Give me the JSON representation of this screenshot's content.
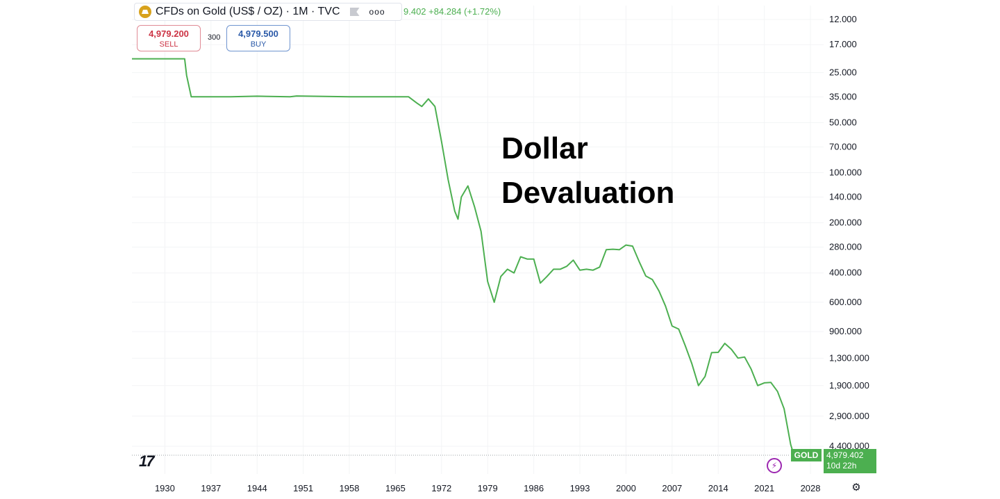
{
  "header": {
    "symbol_title": "CFDs on Gold (US$ / OZ) · 1M · TVC",
    "price_change": "9.402 +84.284 (+1.72%)",
    "more_icon": "ooo"
  },
  "trade": {
    "sell_price": "4,979.200",
    "sell_label": "SELL",
    "spread": "300",
    "buy_price": "4,979.500",
    "buy_label": "BUY"
  },
  "annotation_lines": [
    "Dollar",
    "Devaluation"
  ],
  "last_price": {
    "symbol": "GOLD",
    "price": "4,979.402",
    "countdown": "10d 22h"
  },
  "logo_text": "17",
  "colors": {
    "line": "#4caf50",
    "bolt": "#9c27b0",
    "gold_logo": "#d8a21c"
  },
  "icons": [
    "gold-logo-icon",
    "flag-icon",
    "more-icon",
    "lightning-icon",
    "settings-icon"
  ],
  "chart_data": {
    "type": "line",
    "scale": "log",
    "inverted": true,
    "series_name": "GOLD",
    "x_tick_labels": [
      "1930",
      "1937",
      "1944",
      "1951",
      "1958",
      "1965",
      "1972",
      "1979",
      "1986",
      "1993",
      "2000",
      "2007",
      "2014",
      "2021",
      "2028"
    ],
    "y_tick_labels": [
      "12.000",
      "17.000",
      "25.000",
      "35.000",
      "50.000",
      "70.000",
      "100.000",
      "140.000",
      "200.000",
      "280.000",
      "400.000",
      "600.000",
      "900.000",
      "1,300.000",
      "1,900.000",
      "2,900.000",
      "4,400.000"
    ],
    "y_tick_values": [
      12,
      17,
      25,
      35,
      50,
      70,
      100,
      140,
      200,
      280,
      400,
      600,
      900,
      1300,
      1900,
      2900,
      4400
    ],
    "x_range": [
      1925,
      2030
    ],
    "points": [
      [
        1925.0,
        20.67
      ],
      [
        1929.0,
        20.67
      ],
      [
        1931.0,
        20.67
      ],
      [
        1933.0,
        20.67
      ],
      [
        1933.3,
        26.0
      ],
      [
        1934.0,
        35.0
      ],
      [
        1940.0,
        35.0
      ],
      [
        1944.0,
        34.7
      ],
      [
        1949.0,
        35.0
      ],
      [
        1950.0,
        34.6
      ],
      [
        1958.0,
        35.0
      ],
      [
        1965.0,
        35.0
      ],
      [
        1967.0,
        35.0
      ],
      [
        1968.2,
        38.0
      ],
      [
        1969.0,
        40.0
      ],
      [
        1970.0,
        36.0
      ],
      [
        1971.0,
        40.0
      ],
      [
        1972.0,
        65.0
      ],
      [
        1973.0,
        110.0
      ],
      [
        1974.0,
        170.0
      ],
      [
        1974.5,
        190.0
      ],
      [
        1975.0,
        140.0
      ],
      [
        1976.0,
        120.0
      ],
      [
        1977.0,
        160.0
      ],
      [
        1978.0,
        225.0
      ],
      [
        1979.0,
        450.0
      ],
      [
        1980.0,
        600.0
      ],
      [
        1981.0,
        420.0
      ],
      [
        1982.0,
        380.0
      ],
      [
        1983.0,
        400.0
      ],
      [
        1984.0,
        320.0
      ],
      [
        1985.0,
        330.0
      ],
      [
        1986.0,
        330.0
      ],
      [
        1987.0,
        460.0
      ],
      [
        1988.0,
        420.0
      ],
      [
        1989.0,
        380.0
      ],
      [
        1990.0,
        380.0
      ],
      [
        1991.0,
        365.0
      ],
      [
        1992.0,
        335.0
      ],
      [
        1993.0,
        385.0
      ],
      [
        1994.0,
        380.0
      ],
      [
        1995.0,
        385.0
      ],
      [
        1996.0,
        369.0
      ],
      [
        1997.0,
        290.0
      ],
      [
        1998.0,
        288.0
      ],
      [
        1999.0,
        290.0
      ],
      [
        2000.0,
        272.0
      ],
      [
        2001.0,
        276.0
      ],
      [
        2002.0,
        342.0
      ],
      [
        2003.0,
        417.0
      ],
      [
        2004.0,
        438.0
      ],
      [
        2005.0,
        513.0
      ],
      [
        2006.0,
        632.0
      ],
      [
        2007.0,
        834.0
      ],
      [
        2008.0,
        870.0
      ],
      [
        2009.0,
        1095.0
      ],
      [
        2010.0,
        1405.0
      ],
      [
        2011.0,
        1900.0
      ],
      [
        2012.0,
        1675.0
      ],
      [
        2013.0,
        1205.0
      ],
      [
        2014.0,
        1200.0
      ],
      [
        2015.0,
        1060.0
      ],
      [
        2016.0,
        1150.0
      ],
      [
        2017.0,
        1300.0
      ],
      [
        2018.0,
        1280.0
      ],
      [
        2019.0,
        1515.0
      ],
      [
        2020.0,
        1900.0
      ],
      [
        2021.0,
        1830.0
      ],
      [
        2022.0,
        1820.0
      ],
      [
        2023.0,
        2060.0
      ],
      [
        2024.0,
        2620.0
      ],
      [
        2025.0,
        4300.0
      ],
      [
        2025.5,
        4979.4
      ]
    ],
    "last_value": 4979.402
  }
}
